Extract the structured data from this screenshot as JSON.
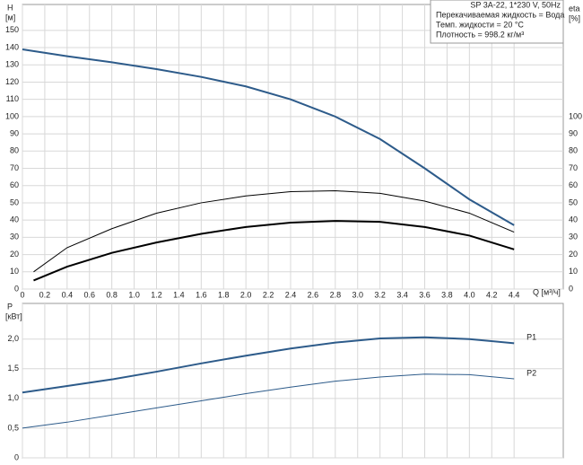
{
  "chart_data": [
    {
      "type": "line",
      "y_label": "H",
      "y_unit": "[м]",
      "y2_label": "eta",
      "y2_unit": "[%]",
      "x_label": "Q [м³/ч]",
      "info": [
        "SP 3A-22, 1*230 V, 50Hz",
        "Перекачиваемая жидкость = Вода",
        "Темп. жидкости = 20 °C",
        "Плотность = 998.2 кг/м³"
      ],
      "xlim": [
        0,
        4.84
      ],
      "ylim": [
        0,
        165
      ],
      "y2lim": [
        0,
        165
      ],
      "xticks": [
        0,
        0.2,
        0.4,
        0.6,
        0.8,
        {
          "value": 1,
          "label": "1.0"
        },
        1.2,
        1.4,
        1.6,
        1.8,
        {
          "value": 2,
          "label": "2.0"
        },
        2.2,
        2.4,
        2.6,
        2.8,
        {
          "value": 3,
          "label": "3.0"
        },
        3.2,
        3.4,
        3.6,
        3.8,
        {
          "value": 4,
          "label": "4.0"
        },
        4.2,
        4.4
      ],
      "yticks": [
        0,
        10,
        20,
        30,
        40,
        50,
        60,
        70,
        80,
        90,
        100,
        110,
        120,
        130,
        140,
        150
      ],
      "y2ticks": [
        0,
        10,
        20,
        30,
        40,
        50,
        60,
        70,
        80,
        90,
        100
      ],
      "grid": true,
      "series": [
        {
          "color": "#2d5b8a",
          "width": 2,
          "x": [
            0,
            0.4,
            0.8,
            1.2,
            1.6,
            2.0,
            2.4,
            2.8,
            3.2,
            3.6,
            4.0,
            4.4
          ],
          "values": [
            139,
            135,
            131.5,
            127.5,
            123,
            117.5,
            110,
            100,
            87,
            70,
            52,
            37
          ]
        },
        {
          "color": "#000000",
          "width": 1,
          "axis": "y2",
          "x": [
            0.1,
            0.4,
            0.8,
            1.2,
            1.6,
            2.0,
            2.4,
            2.8,
            3.2,
            3.6,
            4.0,
            4.4
          ],
          "values": [
            10,
            24,
            35,
            44,
            50,
            54,
            56.5,
            57,
            55.5,
            51,
            44,
            33
          ]
        },
        {
          "color": "#000000",
          "width": 2,
          "axis": "y2",
          "x": [
            0.1,
            0.4,
            0.8,
            1.2,
            1.6,
            2.0,
            2.4,
            2.8,
            3.2,
            3.6,
            4.0,
            4.4
          ],
          "values": [
            5,
            13,
            21,
            27,
            32,
            36,
            38.5,
            39.5,
            39,
            36,
            31,
            23
          ]
        }
      ]
    },
    {
      "type": "line",
      "y_label": "P",
      "y_unit": "[кВт]",
      "xlim": [
        0,
        4.84
      ],
      "ylim": [
        0,
        2.6
      ],
      "xticks": [
        0,
        0.2,
        0.4,
        0.6,
        0.8,
        1,
        1.2,
        1.4,
        1.6,
        1.8,
        2,
        2.2,
        2.4,
        2.6,
        2.8,
        3,
        3.2,
        3.4,
        3.6,
        3.8,
        4,
        4.2,
        4.4
      ],
      "yticks": [
        0,
        {
          "value": 0.5,
          "label": "0,5"
        },
        {
          "value": 1,
          "label": "1,0"
        },
        {
          "value": 1.5,
          "label": "1,5"
        },
        {
          "value": 2,
          "label": "2,0"
        }
      ],
      "grid": true,
      "series": [
        {
          "name": "P1",
          "color": "#2d5b8a",
          "width": 2,
          "x": [
            0,
            0.4,
            0.8,
            1.2,
            1.6,
            2.0,
            2.4,
            2.8,
            3.2,
            3.6,
            4.0,
            4.4
          ],
          "values": [
            1.1,
            1.21,
            1.32,
            1.45,
            1.59,
            1.72,
            1.84,
            1.94,
            2.01,
            2.03,
            2.0,
            1.93
          ]
        },
        {
          "name": "P2",
          "color": "#2d5b8a",
          "width": 1,
          "x": [
            0,
            0.4,
            0.8,
            1.2,
            1.6,
            2.0,
            2.4,
            2.8,
            3.2,
            3.6,
            4.0,
            4.4
          ],
          "values": [
            0.5,
            0.6,
            0.72,
            0.84,
            0.96,
            1.08,
            1.19,
            1.29,
            1.36,
            1.41,
            1.4,
            1.33
          ]
        }
      ]
    }
  ]
}
